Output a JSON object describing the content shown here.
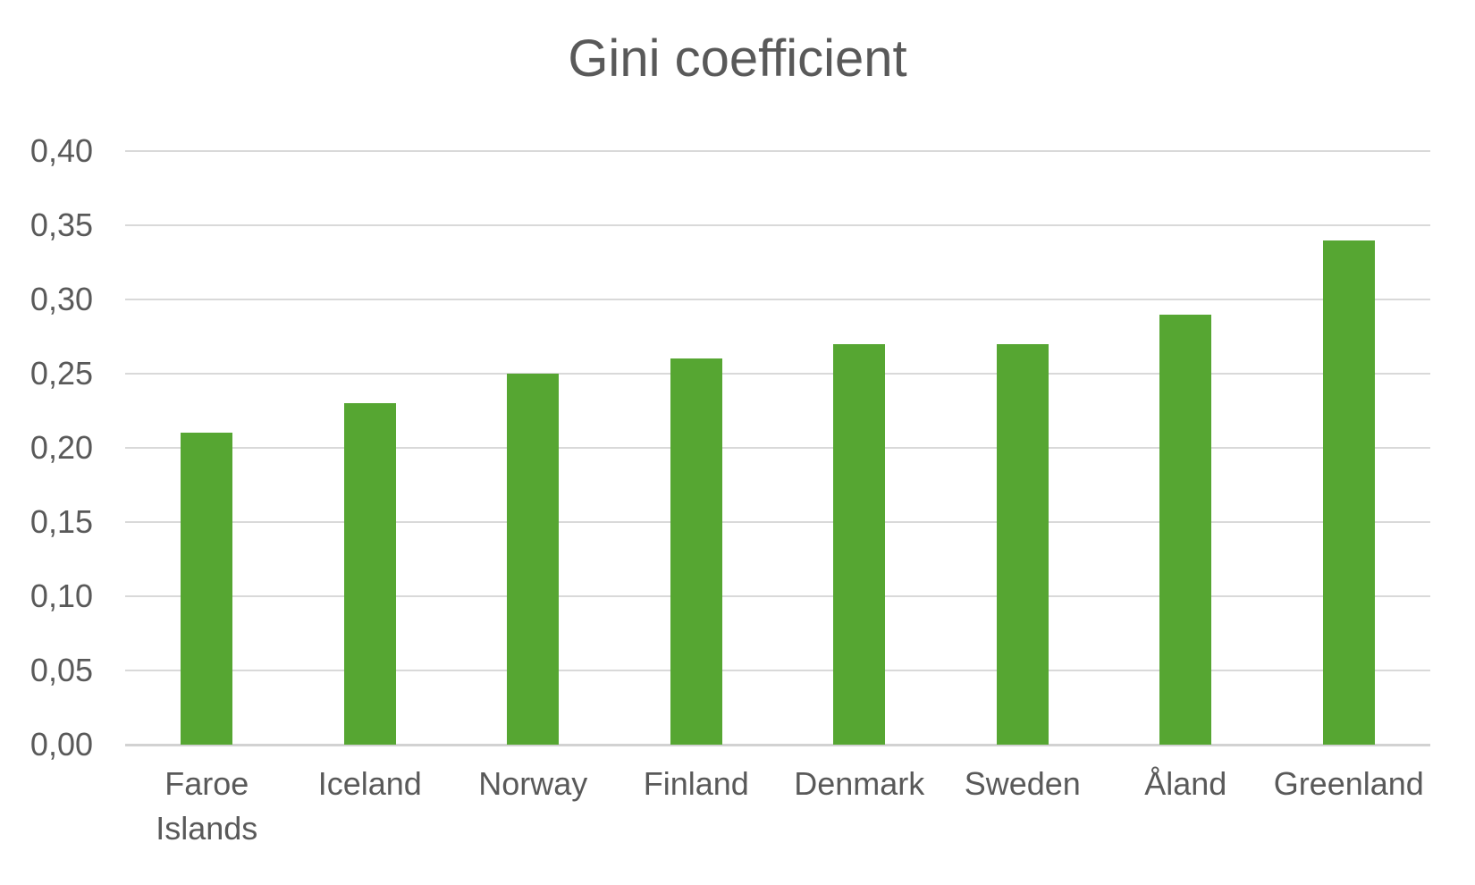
{
  "chart_data": {
    "type": "bar",
    "title": "Gini coefficient",
    "categories": [
      "Faroe Islands",
      "Iceland",
      "Norway",
      "Finland",
      "Denmark",
      "Sweden",
      "Åland",
      "Greenland"
    ],
    "values": [
      0.21,
      0.23,
      0.25,
      0.26,
      0.27,
      0.27,
      0.29,
      0.34
    ],
    "xlabel": "",
    "ylabel": "",
    "ylim": [
      0,
      0.4
    ],
    "ytick_step": 0.05,
    "yticks": [
      {
        "value": 0.0,
        "label": "0,00"
      },
      {
        "value": 0.05,
        "label": "0,05"
      },
      {
        "value": 0.1,
        "label": "0,10"
      },
      {
        "value": 0.15,
        "label": "0,15"
      },
      {
        "value": 0.2,
        "label": "0,20"
      },
      {
        "value": 0.25,
        "label": "0,25"
      },
      {
        "value": 0.3,
        "label": "0,30"
      },
      {
        "value": 0.35,
        "label": "0,35"
      },
      {
        "value": 0.4,
        "label": "0,40"
      }
    ],
    "decimal_separator": ",",
    "grid": "horizontal",
    "legend": "none",
    "colors": {
      "bar": "#56a632",
      "text": "#595959",
      "gridline": "#d9d9d9",
      "axis_line": "#d2d2d2",
      "background": "#ffffff"
    }
  }
}
